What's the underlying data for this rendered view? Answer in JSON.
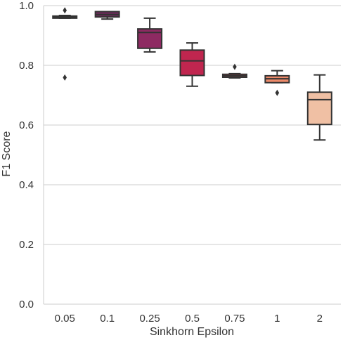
{
  "chart_data": {
    "type": "box",
    "xlabel": "Sinkhorn Epsilon",
    "ylabel": "F1 Score",
    "ylim": [
      0.0,
      1.0
    ],
    "yticks": [
      0.0,
      0.2,
      0.4,
      0.6,
      0.8,
      1.0
    ],
    "ytick_labels": [
      "0.0",
      "0.2",
      "0.4",
      "0.6",
      "0.8",
      "1.0"
    ],
    "grid": "horizontal",
    "categories": [
      "0.05",
      "0.1",
      "0.25",
      "0.5",
      "0.75",
      "1",
      "2"
    ],
    "boxes": [
      {
        "category": "0.05",
        "whisker_low": 0.958,
        "q1": 0.958,
        "median": 0.962,
        "q3": 0.965,
        "whisker_high": 0.967,
        "outliers": [
          0.984,
          0.759
        ],
        "color": "#2b1b2d"
      },
      {
        "category": "0.1",
        "whisker_low": 0.955,
        "q1": 0.962,
        "median": 0.97,
        "q3": 0.98,
        "whisker_high": 0.98,
        "outliers": [],
        "color": "#6c2a5b"
      },
      {
        "category": "0.25",
        "whisker_low": 0.845,
        "q1": 0.857,
        "median": 0.91,
        "q3": 0.922,
        "whisker_high": 0.958,
        "outliers": [],
        "color": "#8e2a62"
      },
      {
        "category": "0.5",
        "whisker_low": 0.73,
        "q1": 0.766,
        "median": 0.815,
        "q3": 0.851,
        "whisker_high": 0.875,
        "outliers": [],
        "color": "#c0264f"
      },
      {
        "category": "0.75",
        "whisker_low": 0.758,
        "q1": 0.76,
        "median": 0.765,
        "q3": 0.77,
        "whisker_high": 0.772,
        "outliers": [
          0.795
        ],
        "color": "#e3383e"
      },
      {
        "category": "1",
        "whisker_low": 0.742,
        "q1": 0.742,
        "median": 0.755,
        "q3": 0.765,
        "whisker_high": 0.782,
        "outliers": [
          0.708
        ],
        "color": "#ec8a6a"
      },
      {
        "category": "2",
        "whisker_low": 0.55,
        "q1": 0.602,
        "median": 0.685,
        "q3": 0.71,
        "whisker_high": 0.768,
        "outliers": [],
        "color": "#f0c0a4"
      }
    ]
  }
}
